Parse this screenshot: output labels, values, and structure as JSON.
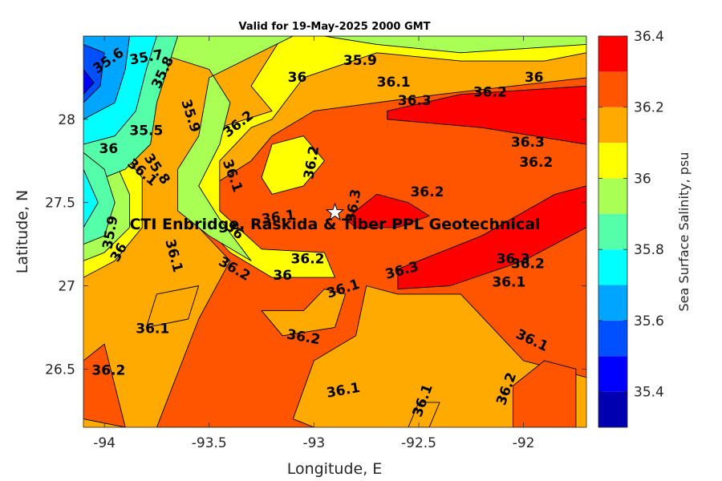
{
  "chart_data": {
    "type": "contourf",
    "title": "Valid for 19-May-2025 2000 GMT",
    "xlabel": "Longitude, E",
    "ylabel": "Latitude, N",
    "xlim": [
      -94.1,
      -91.7
    ],
    "ylim": [
      26.15,
      28.5
    ],
    "xticks": [
      {
        "value": -94,
        "label": "-94"
      },
      {
        "value": -93.5,
        "label": "-93.5"
      },
      {
        "value": -93,
        "label": "-93"
      },
      {
        "value": -92.5,
        "label": "-92.5"
      },
      {
        "value": -92,
        "label": "-92"
      }
    ],
    "yticks": [
      {
        "value": 26.5,
        "label": "26.5"
      },
      {
        "value": 27,
        "label": "27"
      },
      {
        "value": 27.5,
        "label": "27.5"
      },
      {
        "value": 28,
        "label": "28"
      }
    ],
    "colorbar": {
      "label": "Sea Surface Salinity, psu",
      "range": [
        35.3,
        36.4
      ],
      "ticks": [
        {
          "value": 35.4,
          "label": "35.4"
        },
        {
          "value": 35.6,
          "label": "35.6"
        },
        {
          "value": 35.8,
          "label": "35.8"
        },
        {
          "value": 36,
          "label": "36"
        },
        {
          "value": 36.2,
          "label": "36.2"
        },
        {
          "value": 36.4,
          "label": "36.4"
        }
      ],
      "bands": [
        {
          "from": 35.3,
          "to": 35.4,
          "color": "#0000b0"
        },
        {
          "from": 35.4,
          "to": 35.5,
          "color": "#0000ff"
        },
        {
          "from": 35.5,
          "to": 35.6,
          "color": "#0050ff"
        },
        {
          "from": 35.6,
          "to": 35.7,
          "color": "#00a5ff"
        },
        {
          "from": 35.7,
          "to": 35.8,
          "color": "#00ffff"
        },
        {
          "from": 35.8,
          "to": 35.9,
          "color": "#55ffaa"
        },
        {
          "from": 35.9,
          "to": 36.0,
          "color": "#aaff55"
        },
        {
          "from": 36.0,
          "to": 36.1,
          "color": "#ffff00"
        },
        {
          "from": 36.1,
          "to": 36.2,
          "color": "#ffaa00"
        },
        {
          "from": 36.2,
          "to": 36.3,
          "color": "#ff5500"
        },
        {
          "from": 36.3,
          "to": 36.4,
          "color": "#ff0000"
        }
      ]
    },
    "regions": [
      {
        "level": 36.1,
        "points": [
          [
            -94.1,
            28.5
          ],
          [
            -91.7,
            28.5
          ],
          [
            -91.7,
            26.15
          ],
          [
            -94.1,
            26.15
          ]
        ]
      },
      {
        "level": 36.2,
        "points": [
          [
            -93.75,
            26.15
          ],
          [
            -93.55,
            26.8
          ],
          [
            -93.4,
            27.15
          ],
          [
            -93.55,
            27.35
          ],
          [
            -93.55,
            27.55
          ],
          [
            -93.3,
            27.75
          ],
          [
            -93.2,
            27.9
          ],
          [
            -93.0,
            28.05
          ],
          [
            -92.4,
            28.15
          ],
          [
            -91.7,
            28.25
          ],
          [
            -91.7,
            26.45
          ],
          [
            -92.0,
            26.55
          ],
          [
            -92.3,
            26.95
          ],
          [
            -92.6,
            26.95
          ],
          [
            -92.75,
            27.0
          ],
          [
            -92.8,
            26.7
          ],
          [
            -93.0,
            26.55
          ],
          [
            -93.1,
            26.2
          ],
          [
            -93.0,
            26.15
          ]
        ]
      },
      {
        "level": 36.2,
        "points": [
          [
            -94.1,
            26.2
          ],
          [
            -94.1,
            26.55
          ],
          [
            -94.0,
            26.65
          ],
          [
            -93.9,
            26.15
          ]
        ]
      },
      {
        "level": 36.2,
        "points": [
          [
            -92.05,
            26.15
          ],
          [
            -92.05,
            26.4
          ],
          [
            -91.9,
            26.55
          ],
          [
            -91.75,
            26.5
          ],
          [
            -91.75,
            26.15
          ]
        ]
      },
      {
        "level": 36.3,
        "points": [
          [
            -92.65,
            28.05
          ],
          [
            -92.3,
            28.15
          ],
          [
            -91.7,
            28.2
          ],
          [
            -91.7,
            27.85
          ],
          [
            -92.2,
            27.95
          ],
          [
            -92.65,
            28.0
          ]
        ]
      },
      {
        "level": 36.3,
        "points": [
          [
            -92.85,
            27.4
          ],
          [
            -92.7,
            27.55
          ],
          [
            -92.55,
            27.5
          ],
          [
            -92.45,
            27.42
          ],
          [
            -92.6,
            27.35
          ],
          [
            -92.8,
            27.35
          ]
        ]
      },
      {
        "level": 36.3,
        "points": [
          [
            -92.6,
            27.1
          ],
          [
            -92.2,
            27.3
          ],
          [
            -91.85,
            27.55
          ],
          [
            -91.7,
            27.6
          ],
          [
            -91.7,
            27.35
          ],
          [
            -92.0,
            27.15
          ],
          [
            -92.35,
            27.0
          ],
          [
            -92.6,
            26.98
          ]
        ]
      },
      {
        "level": 36.0,
        "points": [
          [
            -94.1,
            27.9
          ],
          [
            -93.95,
            27.85
          ],
          [
            -93.82,
            27.65
          ],
          [
            -93.82,
            27.35
          ],
          [
            -93.95,
            27.15
          ],
          [
            -94.1,
            27.05
          ]
        ]
      },
      {
        "level": 36.0,
        "points": [
          [
            -93.15,
            28.5
          ],
          [
            -93.3,
            28.2
          ],
          [
            -93.2,
            28.05
          ],
          [
            -93.45,
            27.95
          ],
          [
            -93.55,
            27.75
          ],
          [
            -93.55,
            27.4
          ],
          [
            -93.4,
            27.2
          ],
          [
            -93.2,
            27.05
          ],
          [
            -92.9,
            27.05
          ],
          [
            -92.95,
            27.2
          ],
          [
            -93.25,
            27.22
          ],
          [
            -93.45,
            27.45
          ],
          [
            -93.45,
            27.75
          ],
          [
            -93.3,
            27.95
          ],
          [
            -93.2,
            28.0
          ],
          [
            -93.05,
            28.25
          ],
          [
            -92.7,
            28.4
          ],
          [
            -92.3,
            28.35
          ],
          [
            -91.9,
            28.35
          ],
          [
            -91.7,
            28.4
          ],
          [
            -91.7,
            28.5
          ]
        ]
      },
      {
        "level": 36.0,
        "points": [
          [
            -93.25,
            27.65
          ],
          [
            -93.2,
            27.85
          ],
          [
            -93.05,
            27.9
          ],
          [
            -92.95,
            27.75
          ],
          [
            -93.05,
            27.6
          ],
          [
            -93.2,
            27.55
          ]
        ]
      },
      {
        "level": 35.9,
        "points": [
          [
            -94.1,
            28.5
          ],
          [
            -93.1,
            28.5
          ],
          [
            -93.5,
            28.25
          ],
          [
            -93.55,
            27.9
          ],
          [
            -93.65,
            27.7
          ],
          [
            -93.65,
            27.45
          ],
          [
            -93.5,
            27.3
          ],
          [
            -93.3,
            27.15
          ],
          [
            -93.45,
            27.4
          ],
          [
            -93.55,
            27.6
          ],
          [
            -93.45,
            27.85
          ],
          [
            -93.4,
            28.1
          ],
          [
            -93.5,
            28.3
          ],
          [
            -93.75,
            28.4
          ],
          [
            -94.1,
            28.45
          ]
        ]
      },
      {
        "level": 35.9,
        "points": [
          [
            -94.1,
            27.85
          ],
          [
            -93.95,
            27.75
          ],
          [
            -93.88,
            27.55
          ],
          [
            -93.88,
            27.35
          ],
          [
            -94.0,
            27.2
          ],
          [
            -94.1,
            27.15
          ]
        ]
      },
      {
        "level": 35.9,
        "points": [
          [
            -92.95,
            28.5
          ],
          [
            -92.7,
            28.45
          ],
          [
            -92.3,
            28.4
          ],
          [
            -91.7,
            28.45
          ],
          [
            -91.7,
            28.5
          ]
        ]
      },
      {
        "level": 35.8,
        "points": [
          [
            -94.1,
            28.5
          ],
          [
            -93.65,
            28.5
          ],
          [
            -93.7,
            28.3
          ],
          [
            -93.75,
            28.1
          ],
          [
            -93.78,
            27.85
          ],
          [
            -93.9,
            27.7
          ],
          [
            -94.1,
            27.6
          ]
        ]
      },
      {
        "level": 35.8,
        "points": [
          [
            -94.1,
            27.8
          ],
          [
            -94.0,
            27.7
          ],
          [
            -93.95,
            27.5
          ],
          [
            -94.0,
            27.3
          ],
          [
            -94.1,
            27.25
          ]
        ]
      },
      {
        "level": 35.7,
        "points": [
          [
            -94.1,
            28.5
          ],
          [
            -93.75,
            28.5
          ],
          [
            -93.8,
            28.3
          ],
          [
            -93.85,
            28.05
          ],
          [
            -93.95,
            27.9
          ],
          [
            -94.1,
            27.85
          ]
        ]
      },
      {
        "level": 35.7,
        "points": [
          [
            -94.1,
            27.7
          ],
          [
            -94.03,
            27.5
          ],
          [
            -94.1,
            27.35
          ]
        ]
      },
      {
        "level": 35.6,
        "points": [
          [
            -94.1,
            28.5
          ],
          [
            -93.88,
            28.5
          ],
          [
            -93.9,
            28.3
          ],
          [
            -93.95,
            28.1
          ],
          [
            -94.1,
            28.0
          ]
        ]
      },
      {
        "level": 35.5,
        "points": [
          [
            -94.1,
            28.45
          ],
          [
            -94.0,
            28.4
          ],
          [
            -94.02,
            28.2
          ],
          [
            -94.1,
            28.1
          ]
        ]
      },
      {
        "level": 35.4,
        "points": [
          [
            -94.1,
            28.3
          ],
          [
            -94.05,
            28.22
          ],
          [
            -94.1,
            28.15
          ]
        ]
      },
      {
        "level": 36.1,
        "points": [
          [
            -92.55,
            26.15
          ],
          [
            -92.5,
            26.3
          ],
          [
            -92.4,
            26.3
          ],
          [
            -92.45,
            26.15
          ]
        ]
      },
      {
        "level": 36.1,
        "points": [
          [
            -93.15,
            26.7
          ],
          [
            -92.9,
            26.75
          ],
          [
            -92.85,
            26.95
          ],
          [
            -92.95,
            26.98
          ],
          [
            -93.05,
            26.85
          ],
          [
            -93.25,
            26.85
          ]
        ]
      },
      {
        "level": 36.1,
        "points": [
          [
            -93.75,
            26.95
          ],
          [
            -93.55,
            27.0
          ],
          [
            -93.6,
            26.8
          ],
          [
            -93.8,
            26.75
          ]
        ]
      }
    ],
    "contour_labels": [
      {
        "text": "35.6",
        "lon": -93.98,
        "lat": 28.35,
        "angle": -35
      },
      {
        "text": "35.7",
        "lon": -93.8,
        "lat": 28.37,
        "angle": -10
      },
      {
        "text": "35.8",
        "lon": -93.72,
        "lat": 28.28,
        "angle": -65
      },
      {
        "text": "35.9",
        "lon": -93.59,
        "lat": 28.02,
        "angle": 72
      },
      {
        "text": "36",
        "lon": -93.08,
        "lat": 28.25,
        "angle": 0
      },
      {
        "text": "35.9",
        "lon": -92.78,
        "lat": 28.35,
        "angle": 0
      },
      {
        "text": "36.1",
        "lon": -92.62,
        "lat": 28.22,
        "angle": 0
      },
      {
        "text": "36",
        "lon": -91.95,
        "lat": 28.25,
        "angle": 0
      },
      {
        "text": "36.3",
        "lon": -92.52,
        "lat": 28.11,
        "angle": 0
      },
      {
        "text": "36.2",
        "lon": -92.16,
        "lat": 28.16,
        "angle": 0
      },
      {
        "text": "36.2",
        "lon": -93.36,
        "lat": 27.97,
        "angle": -38
      },
      {
        "text": "35.5",
        "lon": -93.8,
        "lat": 27.93,
        "angle": 0
      },
      {
        "text": "36",
        "lon": -93.98,
        "lat": 27.82,
        "angle": 0
      },
      {
        "text": "35.8",
        "lon": -93.75,
        "lat": 27.7,
        "angle": 55
      },
      {
        "text": "36.1",
        "lon": -93.82,
        "lat": 27.68,
        "angle": 40
      },
      {
        "text": "36.1",
        "lon": -93.39,
        "lat": 27.66,
        "angle": 70
      },
      {
        "text": "36.2",
        "lon": -93.01,
        "lat": 27.74,
        "angle": -80
      },
      {
        "text": "36.3",
        "lon": -91.98,
        "lat": 27.86,
        "angle": 0
      },
      {
        "text": "36.2",
        "lon": -91.94,
        "lat": 27.74,
        "angle": 0
      },
      {
        "text": "36.2",
        "lon": -92.46,
        "lat": 27.56,
        "angle": 0
      },
      {
        "text": "36.3",
        "lon": -92.81,
        "lat": 27.48,
        "angle": -80
      },
      {
        "text": "36.1",
        "lon": -93.17,
        "lat": 27.41,
        "angle": -8
      },
      {
        "text": "36",
        "lon": -93.38,
        "lat": 27.33,
        "angle": 40
      },
      {
        "text": "35.9",
        "lon": -93.97,
        "lat": 27.32,
        "angle": -80
      },
      {
        "text": "36",
        "lon": -93.93,
        "lat": 27.2,
        "angle": -60
      },
      {
        "text": "36.1",
        "lon": -93.67,
        "lat": 27.18,
        "angle": 75
      },
      {
        "text": "36.2",
        "lon": -93.38,
        "lat": 27.1,
        "angle": 30
      },
      {
        "text": "36.2",
        "lon": -93.03,
        "lat": 27.16,
        "angle": 0
      },
      {
        "text": "36",
        "lon": -93.15,
        "lat": 27.06,
        "angle": 0
      },
      {
        "text": "36.1",
        "lon": -92.86,
        "lat": 26.98,
        "angle": -18
      },
      {
        "text": "36.3",
        "lon": -92.58,
        "lat": 27.09,
        "angle": -15
      },
      {
        "text": "36.3",
        "lon": -92.05,
        "lat": 27.16,
        "angle": 0
      },
      {
        "text": "36.2",
        "lon": -91.98,
        "lat": 27.13,
        "angle": 0
      },
      {
        "text": "36.1",
        "lon": -92.07,
        "lat": 27.02,
        "angle": 0
      },
      {
        "text": "36.1",
        "lon": -93.77,
        "lat": 26.74,
        "angle": 0
      },
      {
        "text": "36.1",
        "lon": -91.96,
        "lat": 26.67,
        "angle": 25
      },
      {
        "text": "36.2",
        "lon": -93.05,
        "lat": 26.69,
        "angle": 10
      },
      {
        "text": "36.2",
        "lon": -93.98,
        "lat": 26.49,
        "angle": 0
      },
      {
        "text": "36.1",
        "lon": -92.86,
        "lat": 26.37,
        "angle": -10
      },
      {
        "text": "36.1",
        "lon": -92.48,
        "lat": 26.31,
        "angle": -70
      },
      {
        "text": "36.2",
        "lon": -92.08,
        "lat": 26.38,
        "angle": -70
      }
    ],
    "annotation": {
      "text": "CTI Enbridge, Raskida & Tiber PPL Geotechnical",
      "lon": -92.9,
      "lat": 27.44,
      "marker": "star"
    }
  }
}
